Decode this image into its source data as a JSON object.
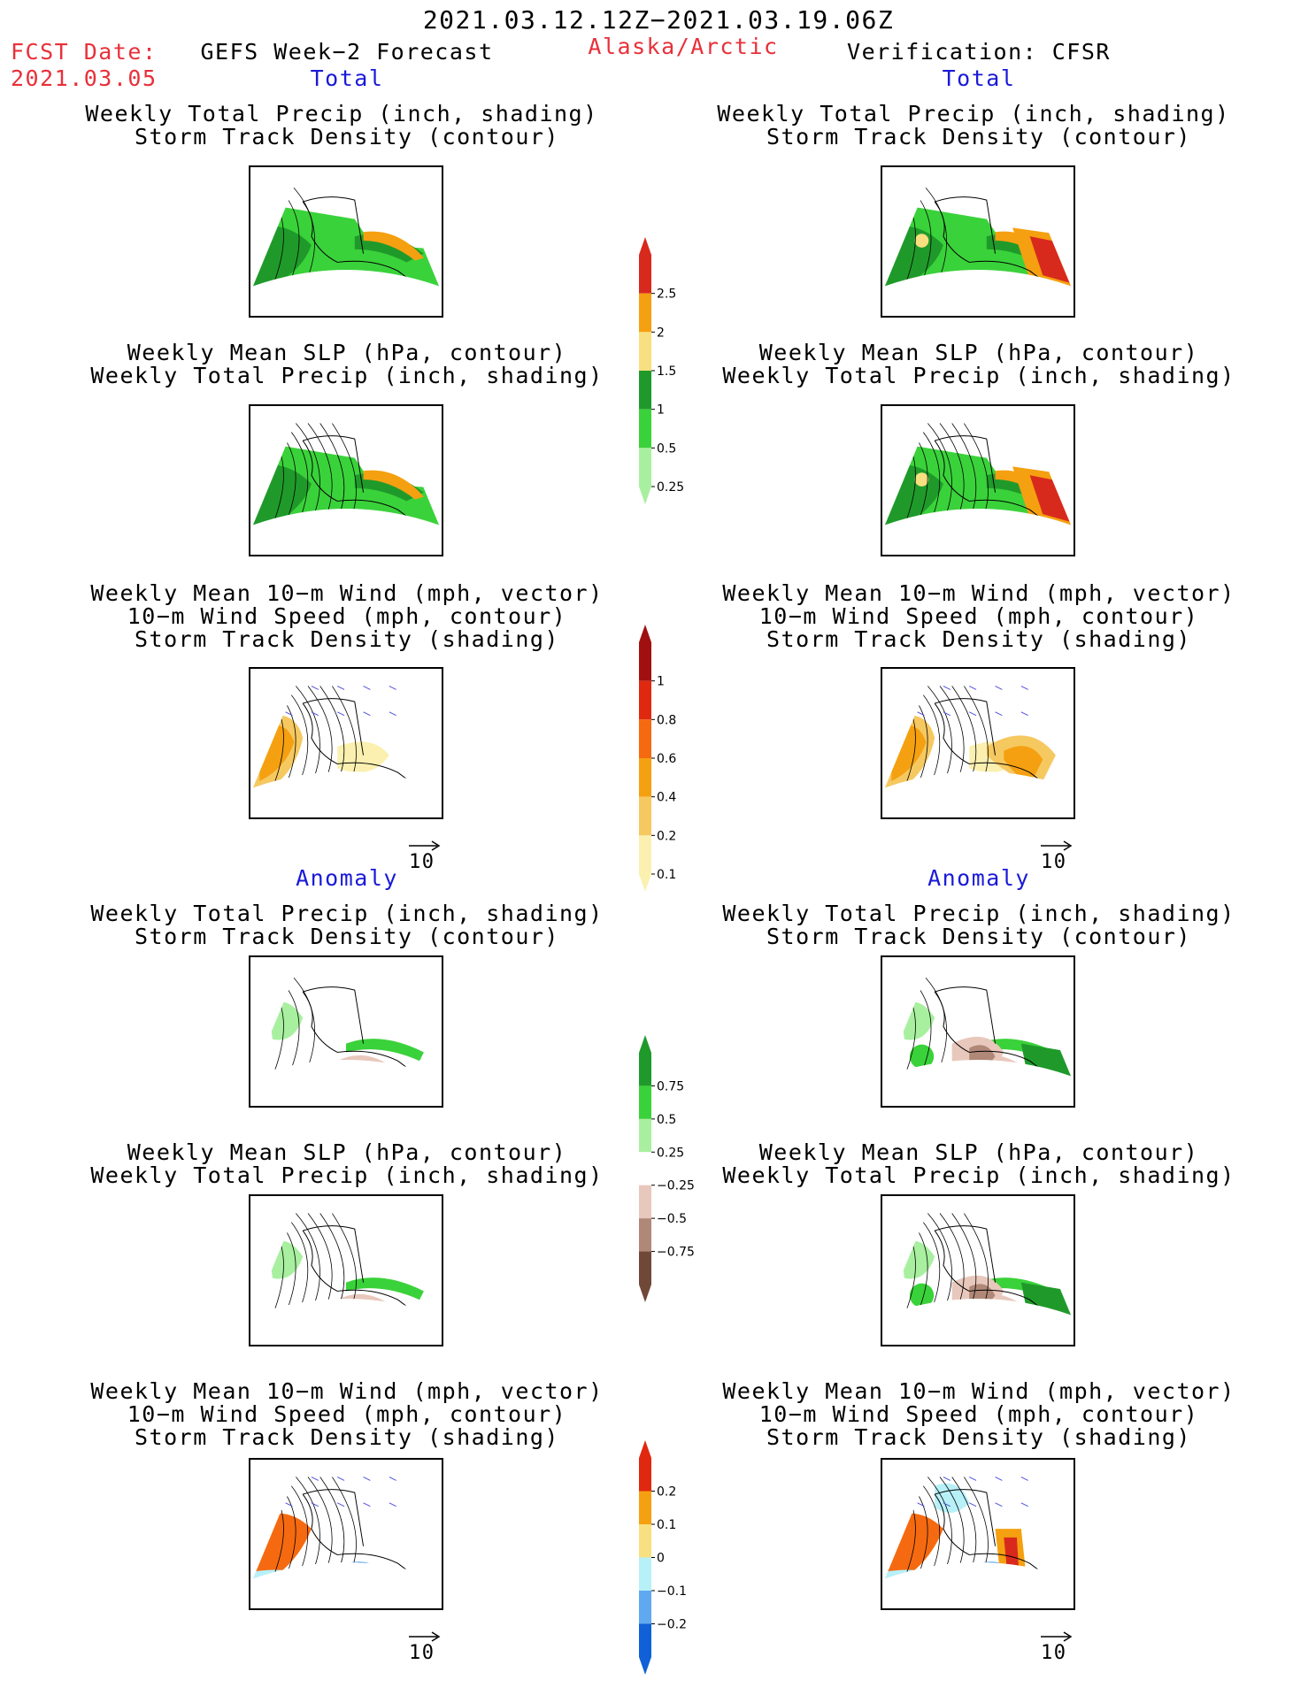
{
  "header": {
    "date_range": "2021.03.12.12Z−2021.03.19.06Z",
    "fcst_label": "FCST Date:",
    "fcst_date": "2021.03.05",
    "model": "GEFS Week−2 Forecast",
    "region": "Alaska/Arctic",
    "verification": "Verification: CFSR"
  },
  "sections": {
    "total": "Total",
    "anomaly": "Anomaly"
  },
  "panel_titles": {
    "precip_track": [
      "Weekly Total Precip (inch, shading)",
      "Storm Track Density (contour)"
    ],
    "slp_precip": [
      "Weekly Mean SLP (hPa, contour)",
      "Weekly Total Precip (inch, shading)"
    ],
    "wind_track": [
      "Weekly Mean 10−m Wind (mph, vector)",
      "10−m Wind Speed (mph, contour)",
      "Storm Track Density (shading)"
    ]
  },
  "vector_ref": "10",
  "colors": {
    "title_red": "#e8303a",
    "title_blue": "#1a1ad8",
    "vector_blue": "#5050e0"
  },
  "colorbars": {
    "precip_total": {
      "labels": [
        "2.5",
        "2",
        "1.5",
        "1",
        "0.5",
        "0.25"
      ],
      "colors": [
        "#d82a1c",
        "#f5a010",
        "#f8e080",
        "#1f9a2a",
        "#3ad23a",
        "#a8f0a0"
      ]
    },
    "track_total": {
      "labels": [
        "1",
        "0.8",
        "0.6",
        "0.4",
        "0.2",
        "0.1"
      ],
      "colors": [
        "#a01010",
        "#e02810",
        "#f56a10",
        "#f5a010",
        "#f6c860",
        "#fbf0b0"
      ]
    },
    "precip_anom": {
      "labels": [
        "0.75",
        "0.5",
        "0.25",
        "−0.25",
        "−0.5",
        "−0.75"
      ],
      "colors": [
        "#1f9a2a",
        "#3ad23a",
        "#a8f0a0",
        "#ffffff",
        "#e8c8bc",
        "#b08878",
        "#704838"
      ]
    },
    "track_anom": {
      "labels": [
        "0.2",
        "0.1",
        "0",
        "−0.1",
        "−0.2"
      ],
      "colors": [
        "#e02810",
        "#f5a010",
        "#f8e080",
        "#b8f0f8",
        "#60a8f0",
        "#1060d8"
      ]
    }
  }
}
